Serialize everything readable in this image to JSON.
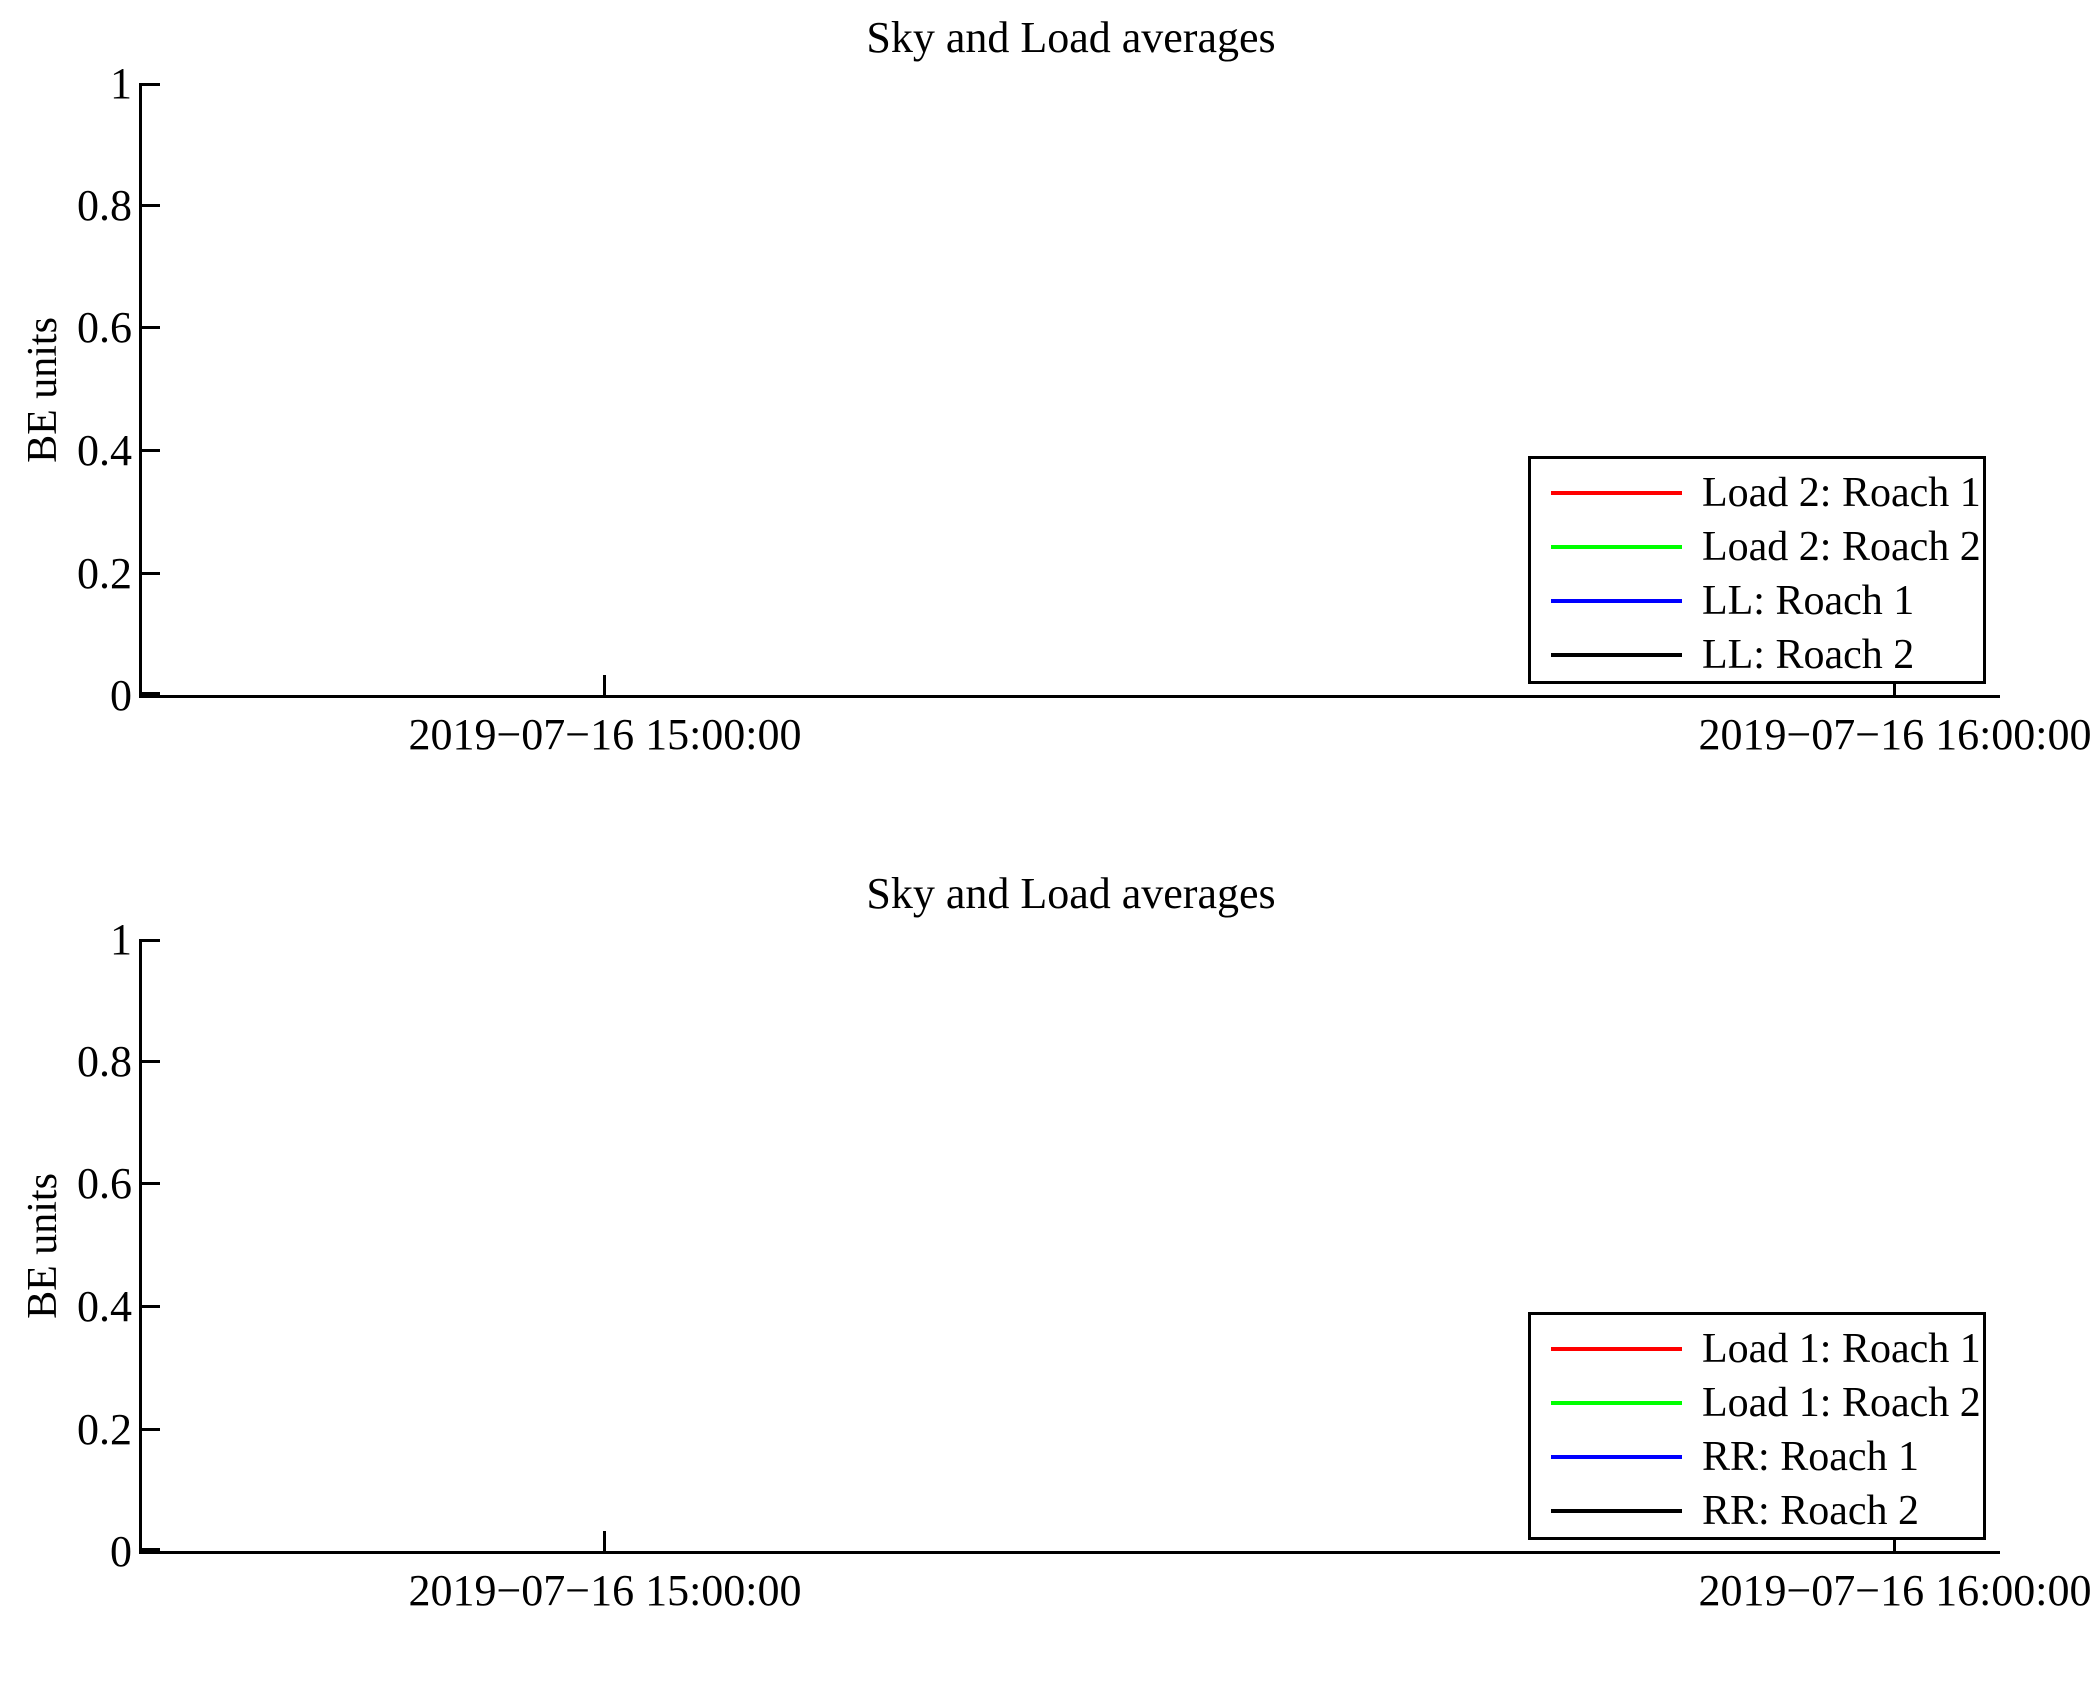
{
  "figure": {
    "background": "#ffffff"
  },
  "chart_data": [
    {
      "type": "line",
      "title": "Sky and Load averages",
      "xlabel": "",
      "ylabel": "BE units",
      "ylim": [
        0,
        1
      ],
      "ytick_labels": [
        "1",
        "0.8",
        "0.6",
        "0.4",
        "0.2",
        "0"
      ],
      "ytick_values": [
        1,
        0.8,
        0.6,
        0.4,
        0.2,
        0
      ],
      "xtick_labels": [
        "2019−07−16 15:00:00",
        "2019−07−16 16:00:00"
      ],
      "grid": false,
      "legend_position": "lower right",
      "series": [
        {
          "name": "Load 2: Roach 1",
          "color": "#ff0000",
          "x": [],
          "y": []
        },
        {
          "name": "Load 2: Roach 2",
          "color": "#00ff00",
          "x": [],
          "y": []
        },
        {
          "name": "LL: Roach 1",
          "color": "#0000ff",
          "x": [],
          "y": []
        },
        {
          "name": "LL: Roach 2",
          "color": "#000000",
          "x": [],
          "y": []
        }
      ]
    },
    {
      "type": "line",
      "title": "Sky and Load averages",
      "xlabel": "",
      "ylabel": "BE units",
      "ylim": [
        0,
        1
      ],
      "ytick_labels": [
        "1",
        "0.8",
        "0.6",
        "0.4",
        "0.2",
        "0"
      ],
      "ytick_values": [
        1,
        0.8,
        0.6,
        0.4,
        0.2,
        0
      ],
      "xtick_labels": [
        "2019−07−16 15:00:00",
        "2019−07−16 16:00:00"
      ],
      "grid": false,
      "legend_position": "lower right",
      "series": [
        {
          "name": "Load 1: Roach 1",
          "color": "#ff0000",
          "x": [],
          "y": []
        },
        {
          "name": "Load 1: Roach 2",
          "color": "#00ff00",
          "x": [],
          "y": []
        },
        {
          "name": "RR: Roach 1",
          "color": "#0000ff",
          "x": [],
          "y": []
        },
        {
          "name": "RR: Roach 2",
          "color": "#000000",
          "x": [],
          "y": []
        }
      ]
    }
  ]
}
